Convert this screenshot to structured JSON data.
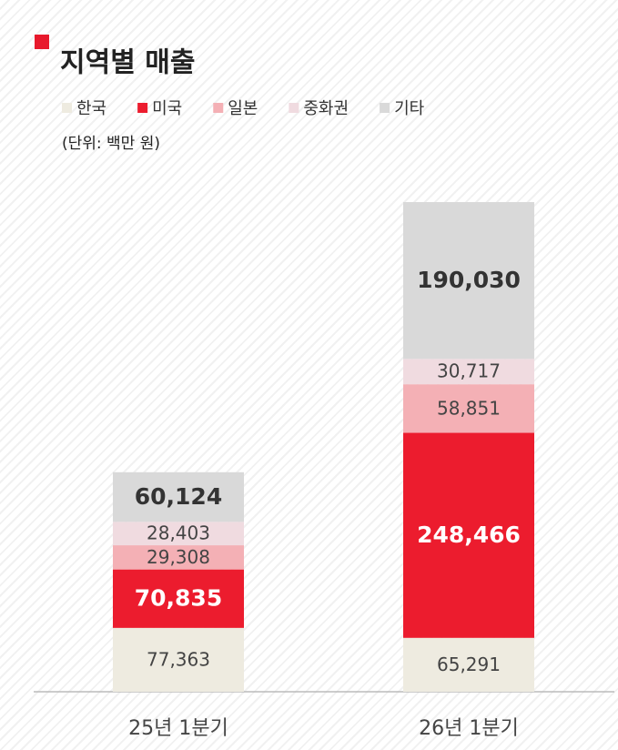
{
  "chart_data": {
    "type": "stacked_bar",
    "title": "지역별 매출",
    "subtitle": "(단위: 백만 원)",
    "categories": [
      "25년 1분기",
      "26년 1분기"
    ],
    "series": [
      {
        "name": "한국",
        "color": "#eeebe0",
        "values": [
          77363,
          65291
        ],
        "value_labels": [
          "77,363",
          "65,291"
        ]
      },
      {
        "name": "미국",
        "color": "#ec1c2e",
        "values": [
          70835,
          248466
        ],
        "value_labels": [
          "70,835",
          "248,466"
        ],
        "label_bold": true
      },
      {
        "name": "일본",
        "color": "#f4b0b5",
        "values": [
          29308,
          58851
        ],
        "value_labels": [
          "29,308",
          "58,851"
        ]
      },
      {
        "name": "중화권",
        "color": "#f0dbe0",
        "values": [
          28403,
          30717
        ],
        "value_labels": [
          "28,403",
          "30,717"
        ]
      },
      {
        "name": "기타",
        "color": "#d9d9d9",
        "values": [
          60124,
          190030
        ],
        "value_labels": [
          "60,124",
          "190,030"
        ],
        "label_bold": true
      }
    ],
    "ylim": [
      0,
      600000
    ]
  }
}
